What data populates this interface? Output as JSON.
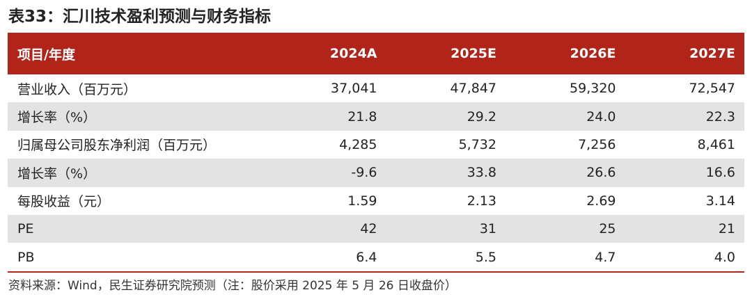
{
  "title": "表33：汇川技术盈利预测与财务指标",
  "table": {
    "headers": [
      "项目/年度",
      "2024A",
      "2025E",
      "2026E",
      "2027E"
    ],
    "rows": [
      [
        "营业收入（百万元）",
        "37,041",
        "47,847",
        "59,320",
        "72,547"
      ],
      [
        "增长率（%）",
        "21.8",
        "29.2",
        "24.0",
        "22.3"
      ],
      [
        "归属母公司股东净利润（百万元）",
        "4,285",
        "5,732",
        "7,256",
        "8,461"
      ],
      [
        "增长率（%）",
        "-9.6",
        "33.8",
        "26.6",
        "16.6"
      ],
      [
        "每股收益（元）",
        "1.59",
        "2.13",
        "2.69",
        "3.14"
      ],
      [
        "PE",
        "42",
        "31",
        "25",
        "21"
      ],
      [
        "PB",
        "6.4",
        "5.5",
        "4.7",
        "4.0"
      ]
    ]
  },
  "source": "资料来源：Wind，民生证券研究院预测（注：股价采用 2025 年 5 月 26 日收盘价）",
  "colors": {
    "header_bg": "#b02419",
    "alt_row_bg": "#e3e3e3"
  }
}
